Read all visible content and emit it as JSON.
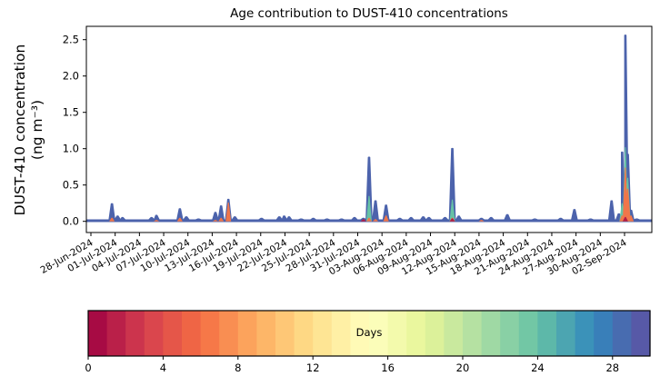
{
  "chart_data": {
    "type": "area",
    "title": "Age contribution to DUST-410 concentrations",
    "ylabel_line1": "DUST-410 concentration",
    "ylabel_line2": "(ng m⁻³)",
    "ytick_labels": [
      "0.0",
      "0.5",
      "1.0",
      "1.5",
      "2.0",
      "2.5"
    ],
    "ytick_values": [
      0.0,
      0.5,
      1.0,
      1.5,
      2.0,
      2.5
    ],
    "ylim": [
      -0.13,
      2.69
    ],
    "xtick_labels": [
      "28-Jun-2024",
      "01-Jul-2024",
      "04-Jul-2024",
      "07-Jul-2024",
      "10-Jul-2024",
      "13-Jul-2024",
      "16-Jul-2024",
      "19-Jul-2024",
      "22-Jul-2024",
      "25-Jul-2024",
      "28-Jul-2024",
      "31-Jul-2024",
      "03-Aug-2024",
      "06-Aug-2024",
      "09-Aug-2024",
      "12-Aug-2024",
      "15-Aug-2024",
      "18-Aug-2024",
      "21-Aug-2024",
      "24-Aug-2024",
      "27-Aug-2024",
      "30-Aug-2024",
      "02-Sep-2024"
    ],
    "xtick_interval_days": 3,
    "xlim_days": [
      -0.56,
      69.4
    ],
    "grid": false,
    "baseline_value": 0.018,
    "layer_colors": {
      "old": "#4c63ac",
      "mid": "#66c2a5",
      "young": "#f0764a",
      "fresh": "#b01c47"
    },
    "spikes_note": "day = days after 28-Jun-2024; total = full stacked height (mostly aged/blue); young/mid/fresh = inner layer heights in ng m-3",
    "spikes": [
      {
        "day": 2.6,
        "total": 0.24,
        "young": 0.05
      },
      {
        "day": 3.3,
        "total": 0.07
      },
      {
        "day": 3.9,
        "total": 0.05
      },
      {
        "day": 7.5,
        "total": 0.05
      },
      {
        "day": 8.1,
        "total": 0.08,
        "young": 0.02
      },
      {
        "day": 11.0,
        "total": 0.17,
        "young": 0.05
      },
      {
        "day": 11.8,
        "total": 0.06
      },
      {
        "day": 13.3,
        "total": 0.03
      },
      {
        "day": 15.4,
        "total": 0.12,
        "young": 0.02
      },
      {
        "day": 16.1,
        "total": 0.21,
        "young": 0.05
      },
      {
        "day": 17.0,
        "total": 0.3,
        "young": 0.26
      },
      {
        "day": 17.8,
        "total": 0.06
      },
      {
        "day": 21.1,
        "total": 0.04
      },
      {
        "day": 23.3,
        "total": 0.06
      },
      {
        "day": 23.9,
        "total": 0.07
      },
      {
        "day": 24.5,
        "total": 0.06
      },
      {
        "day": 26.0,
        "total": 0.03
      },
      {
        "day": 27.5,
        "total": 0.04
      },
      {
        "day": 29.2,
        "total": 0.03
      },
      {
        "day": 31.0,
        "total": 0.03
      },
      {
        "day": 32.6,
        "total": 0.05
      },
      {
        "day": 33.7,
        "total": 0.04,
        "fresh": 0.03
      },
      {
        "day": 34.4,
        "total": 0.88,
        "young": 0.05,
        "mid": 0.35
      },
      {
        "day": 35.2,
        "total": 0.28,
        "young": 0.03
      },
      {
        "day": 36.5,
        "total": 0.22,
        "young": 0.08
      },
      {
        "day": 38.2,
        "total": 0.04
      },
      {
        "day": 39.6,
        "total": 0.05
      },
      {
        "day": 41.1,
        "total": 0.06
      },
      {
        "day": 41.8,
        "total": 0.05
      },
      {
        "day": 43.8,
        "total": 0.05
      },
      {
        "day": 44.7,
        "total": 1.0,
        "young": 0.05,
        "mid": 0.3,
        "fresh": 0.04
      },
      {
        "day": 45.5,
        "total": 0.07
      },
      {
        "day": 48.3,
        "total": 0.04,
        "young": 0.02
      },
      {
        "day": 49.5,
        "total": 0.05
      },
      {
        "day": 51.5,
        "total": 0.09
      },
      {
        "day": 54.9,
        "total": 0.03
      },
      {
        "day": 58.1,
        "total": 0.04
      },
      {
        "day": 59.8,
        "total": 0.16
      },
      {
        "day": 61.8,
        "total": 0.03
      },
      {
        "day": 64.4,
        "total": 0.28
      },
      {
        "day": 65.3,
        "total": 0.1
      },
      {
        "day": 65.7,
        "total": 0.95,
        "young": 0.08,
        "mid": 0.25
      },
      {
        "day": 66.1,
        "total": 2.56,
        "young": 0.74,
        "mid": 1.02,
        "fresh": 0.06
      },
      {
        "day": 66.4,
        "total": 0.92,
        "young": 0.45,
        "mid": 0.6
      },
      {
        "day": 66.8,
        "total": 0.15,
        "young": 0.08
      },
      {
        "day": 67.5,
        "total": 0.03
      }
    ],
    "colorbar": {
      "label": "Days",
      "tick_labels": [
        "0",
        "4",
        "8",
        "12",
        "16",
        "20",
        "24",
        "28"
      ],
      "tick_values": [
        0,
        4,
        8,
        12,
        16,
        20,
        24,
        28
      ],
      "vmin": 0,
      "vmax": 30,
      "n_bins": 30,
      "colormap": "Spectral",
      "spectral_anchors": [
        "#9e0142",
        "#d53e4f",
        "#f46d43",
        "#fdae61",
        "#fee08b",
        "#ffffbf",
        "#e6f598",
        "#abdda4",
        "#66c2a5",
        "#3288bd",
        "#5e4fa2"
      ]
    }
  }
}
